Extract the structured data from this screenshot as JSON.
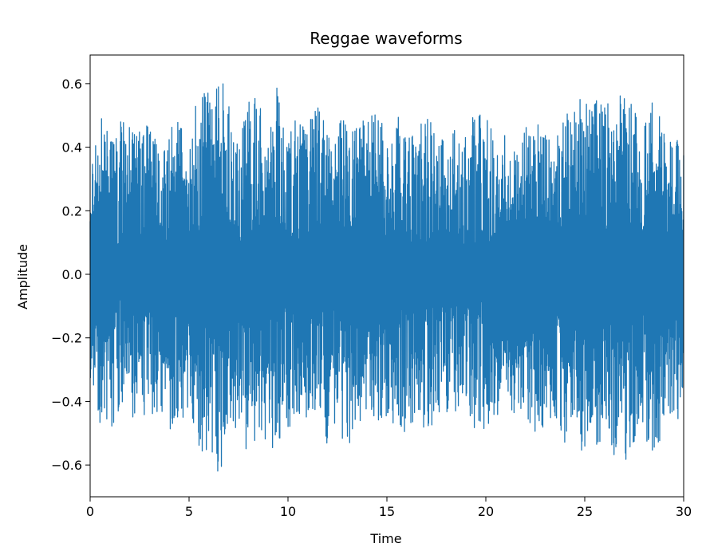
{
  "chart_data": {
    "type": "line",
    "title": "Reggae waveforms",
    "xlabel": "Time",
    "ylabel": "Amplitude",
    "xlim": [
      0,
      30
    ],
    "ylim": [
      -0.7,
      0.69
    ],
    "x_ticks": [
      0,
      5,
      10,
      15,
      20,
      25,
      30
    ],
    "x_tick_labels": [
      "0",
      "5",
      "10",
      "15",
      "20",
      "25",
      "30"
    ],
    "y_ticks": [
      -0.6,
      -0.4,
      -0.2,
      0.0,
      0.2,
      0.4,
      0.6
    ],
    "y_tick_labels": [
      "−0.6",
      "−0.4",
      "−0.2",
      "0.0",
      "0.2",
      "0.4",
      "0.6"
    ],
    "grid": false,
    "legend": "none",
    "series": [
      {
        "color": "#1f77b4",
        "envelope": {
          "x": [
            0,
            0.5,
            1,
            1.5,
            2,
            2.5,
            3,
            3.5,
            4,
            4.5,
            5,
            5.5,
            6,
            6.5,
            7,
            7.5,
            8,
            8.5,
            9,
            9.5,
            10,
            10.5,
            11,
            11.5,
            12,
            12.5,
            13,
            13.5,
            14,
            14.5,
            15,
            15.5,
            16,
            16.5,
            17,
            17.5,
            18,
            18.5,
            19,
            19.5,
            20,
            20.5,
            21,
            21.5,
            22,
            22.5,
            23,
            23.5,
            24,
            24.5,
            25,
            25.5,
            26,
            26.5,
            27,
            27.5,
            28,
            28.5,
            29,
            29.5,
            30
          ],
          "max": [
            0.34,
            0.5,
            0.44,
            0.49,
            0.48,
            0.5,
            0.46,
            0.42,
            0.5,
            0.48,
            0.45,
            0.58,
            0.62,
            0.63,
            0.56,
            0.48,
            0.55,
            0.58,
            0.48,
            0.62,
            0.5,
            0.48,
            0.47,
            0.55,
            0.44,
            0.48,
            0.52,
            0.46,
            0.52,
            0.5,
            0.47,
            0.52,
            0.49,
            0.46,
            0.5,
            0.45,
            0.42,
            0.47,
            0.44,
            0.55,
            0.5,
            0.42,
            0.44,
            0.41,
            0.48,
            0.5,
            0.5,
            0.42,
            0.5,
            0.52,
            0.58,
            0.6,
            0.55,
            0.53,
            0.61,
            0.56,
            0.5,
            0.57,
            0.46,
            0.44,
            0.4
          ],
          "min": [
            -0.35,
            -0.5,
            -0.52,
            -0.44,
            -0.45,
            -0.46,
            -0.48,
            -0.46,
            -0.5,
            -0.47,
            -0.45,
            -0.56,
            -0.62,
            -0.63,
            -0.56,
            -0.46,
            -0.58,
            -0.55,
            -0.55,
            -0.62,
            -0.5,
            -0.45,
            -0.47,
            -0.45,
            -0.54,
            -0.48,
            -0.56,
            -0.45,
            -0.54,
            -0.5,
            -0.46,
            -0.49,
            -0.52,
            -0.46,
            -0.5,
            -0.46,
            -0.44,
            -0.44,
            -0.42,
            -0.5,
            -0.5,
            -0.45,
            -0.44,
            -0.46,
            -0.47,
            -0.5,
            -0.53,
            -0.45,
            -0.55,
            -0.52,
            -0.58,
            -0.6,
            -0.57,
            -0.57,
            -0.59,
            -0.55,
            -0.52,
            -0.58,
            -0.5,
            -0.45,
            -0.47
          ],
          "body": [
            0.2,
            0.26,
            0.22,
            0.14,
            0.18,
            0.15,
            0.16,
            0.2,
            0.17,
            0.14,
            0.2,
            0.18,
            0.22,
            0.3,
            0.2,
            0.16,
            0.22,
            0.24,
            0.18,
            0.2,
            0.17,
            0.16,
            0.17,
            0.17,
            0.16,
            0.18,
            0.19,
            0.18,
            0.2,
            0.22,
            0.2,
            0.2,
            0.15,
            0.14,
            0.16,
            0.15,
            0.15,
            0.15,
            0.16,
            0.15,
            0.16,
            0.15,
            0.26,
            0.28,
            0.24,
            0.22,
            0.24,
            0.2,
            0.22,
            0.24,
            0.25,
            0.26,
            0.24,
            0.24,
            0.26,
            0.22,
            0.2,
            0.24,
            0.25,
            0.2,
            0.22
          ]
        }
      }
    ]
  }
}
